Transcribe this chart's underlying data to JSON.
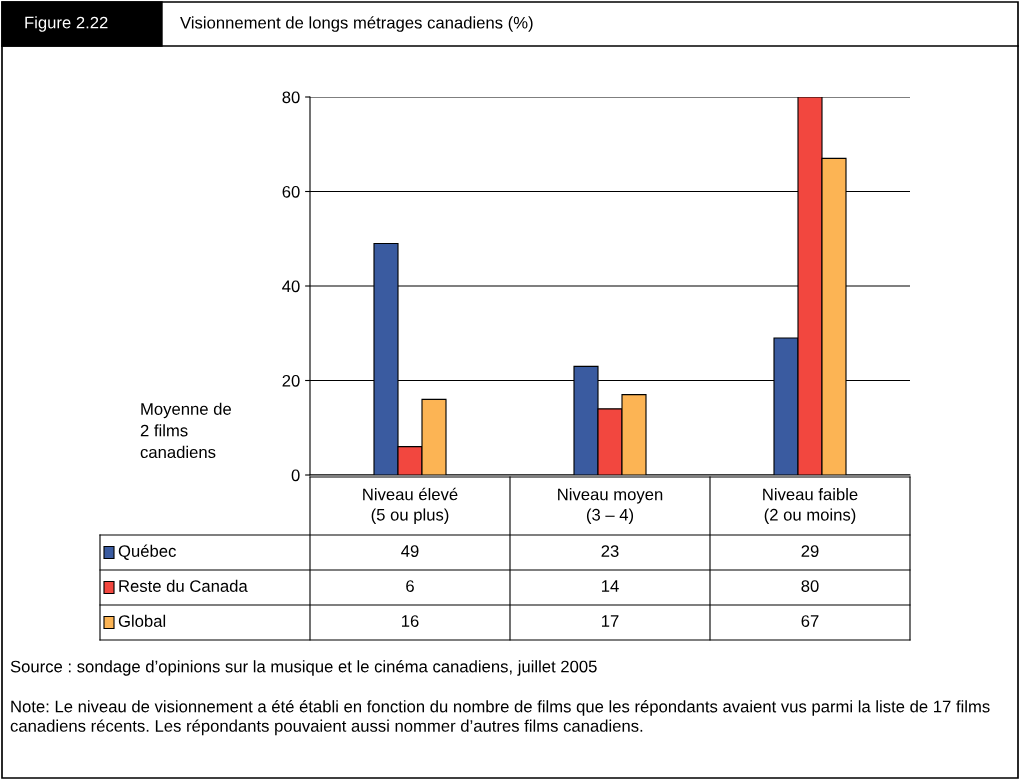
{
  "chart_data": {
    "type": "bar",
    "title": "Figure 2.22",
    "subtitle": "Visionnement de longs métrages canadiens (%)",
    "ylabel": "Moyenne de\n2 films\ncanadiens",
    "categories": [
      "Niveau élevé\n(5 ou plus)",
      "Niveau moyen\n(3 – 4)",
      "Niveau faible\n(2 ou moins)"
    ],
    "series": [
      {
        "name": "Québec",
        "color": "#3a5ba0",
        "values": [
          49,
          23,
          29
        ]
      },
      {
        "name": "Reste du Canada",
        "color": "#f2473f",
        "values": [
          6,
          14,
          80
        ]
      },
      {
        "name": "Global",
        "color": "#fcb454",
        "values": [
          16,
          17,
          67
        ]
      }
    ],
    "ylim": [
      0,
      80
    ],
    "yticks": [
      0,
      20,
      40,
      60,
      80
    ],
    "grid": "y",
    "data_labels": true,
    "legend": "bottom left",
    "annotations": [
      "Source : sondage d’opinions sur la musique et le cinéma canadiens, juillet 2005",
      "Note: Le niveau de visionnement a été établi en fonction du nombre de films que les répondants avaient vus parmi la liste de 17 films canadiens récents. Les répondants pouvaient aussi nommer d’autres films canadiens."
    ]
  }
}
